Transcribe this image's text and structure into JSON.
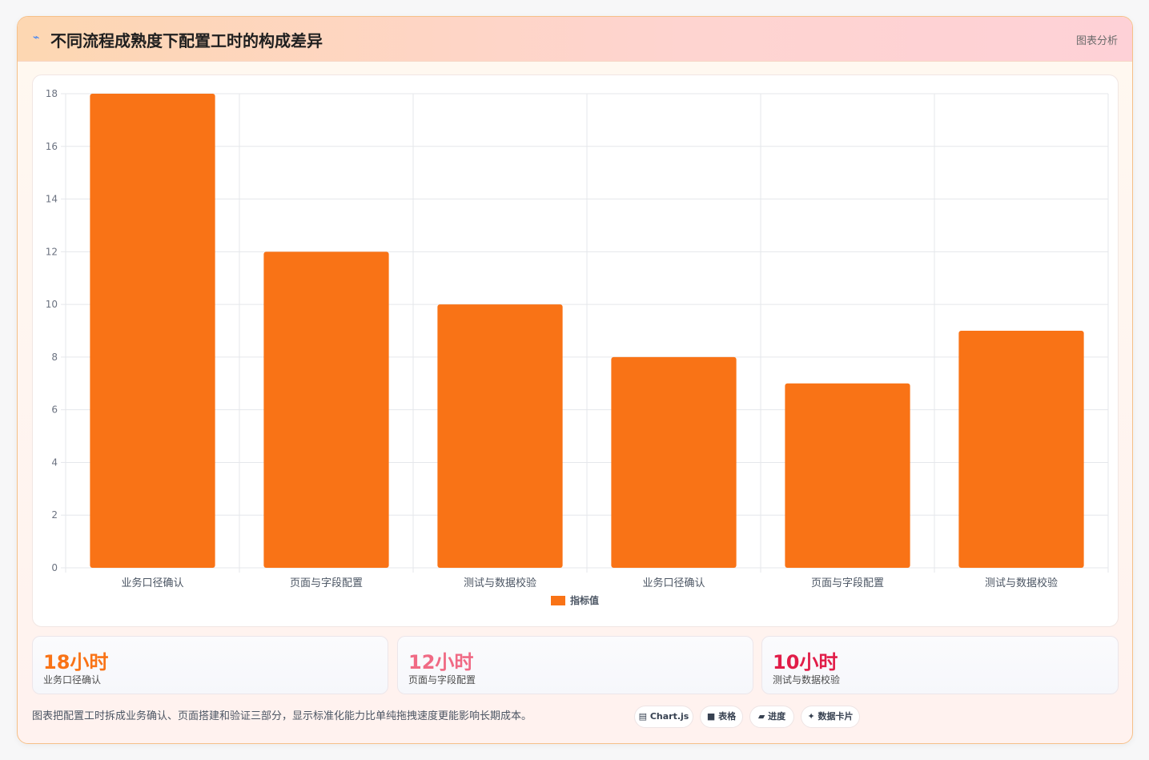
{
  "header": {
    "icon": "sparkle-icon",
    "title": "不同流程成熟度下配置工时的构成差异",
    "tag": "图表分析"
  },
  "chart_data": {
    "type": "bar",
    "categories": [
      "业务口径确认",
      "页面与字段配置",
      "测试与数据校验",
      "业务口径确认",
      "页面与字段配置",
      "测试与数据校验"
    ],
    "series": [
      {
        "name": "指标值",
        "values": [
          18,
          12,
          10,
          8,
          7,
          9
        ],
        "color": "#f97316"
      }
    ],
    "ylim": [
      0,
      18
    ],
    "yticks": [
      0,
      2,
      4,
      6,
      8,
      10,
      12,
      14,
      16,
      18
    ],
    "grid": true,
    "legend": "bottom"
  },
  "stats": [
    {
      "value": "18小时",
      "label": "业务口径确认",
      "color": "#f97316"
    },
    {
      "value": "12小时",
      "label": "页面与字段配置",
      "color": "#f06a84"
    },
    {
      "value": "10小时",
      "label": "测试与数据校验",
      "color": "#e11d48"
    }
  ],
  "footer": {
    "note": "图表把配置工时拆成业务确认、页面搭建和验证三部分，显示标准化能力比单纯拖拽速度更能影响长期成本。",
    "pills": [
      {
        "icon": "chart-icon",
        "label": "▤ Chart.js"
      },
      {
        "icon": "table-icon",
        "label": "■ 表格"
      },
      {
        "icon": "progress-icon",
        "label": "▰ 进度"
      },
      {
        "icon": "card-icon",
        "label": "✦ 数据卡片"
      }
    ]
  }
}
